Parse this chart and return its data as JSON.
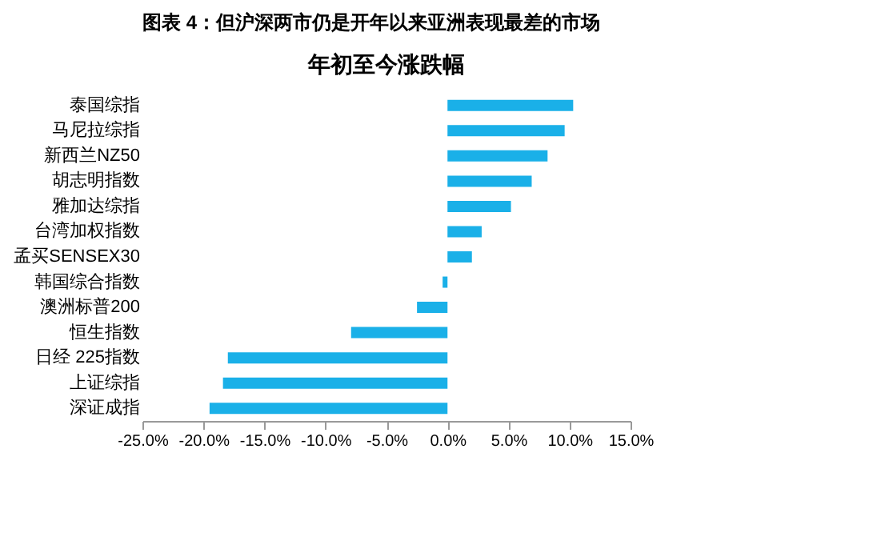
{
  "chart_data": {
    "type": "bar",
    "orientation": "horizontal",
    "title": "年初至今涨跌幅",
    "annotations": [
      "图表 4：但沪深两市仍是开年以来亚洲表现最差的市场"
    ],
    "categories": [
      "泰国综指",
      "马尼拉综指",
      "新西兰NZ50",
      "胡志明指数",
      "雅加达综指",
      "台湾加权指数",
      "孟买SENSEX30",
      "韩国综合指数",
      "澳洲标普200",
      "恒生指数",
      "日经 225指数",
      "上证综指",
      "深证成指"
    ],
    "values": [
      10.3,
      9.6,
      8.2,
      6.9,
      5.2,
      2.8,
      2.0,
      -0.4,
      -2.5,
      -7.9,
      -18.0,
      -18.4,
      -19.5
    ],
    "color": "#1ab0e8",
    "xlim": [
      -25,
      15
    ],
    "xticks": [
      {
        "value": -25,
        "label": "-25.0%"
      },
      {
        "value": -20,
        "label": "-20.0%"
      },
      {
        "value": -15,
        "label": "-15.0%"
      },
      {
        "value": -10,
        "label": "-10.0%"
      },
      {
        "value": -5,
        "label": "-5.0%"
      },
      {
        "value": 0,
        "label": "0.0%"
      },
      {
        "value": 5,
        "label": "5.0%"
      },
      {
        "value": 10,
        "label": "10.0%"
      },
      {
        "value": 15,
        "label": "15.0%"
      }
    ],
    "grid": false
  }
}
